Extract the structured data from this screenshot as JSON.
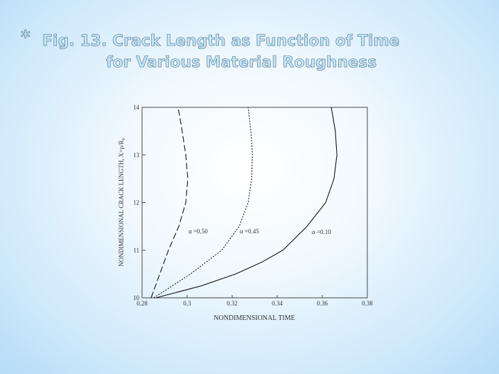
{
  "bullet": "*",
  "chart_data": {
    "type": "line",
    "title": [
      "Fig. 13. Crack Length as Function of Time",
      "for Various Material Roughness"
    ],
    "x_label": "NONDIMENSIONAL TIME",
    "y_label": "NONDIMENSIONAL CRACK LENGTH, X=ρ/R₀",
    "xlim": [
      0.28,
      0.38
    ],
    "xticks": [
      0.28,
      0.3,
      0.32,
      0.34,
      0.36,
      0.38
    ],
    "ylim": [
      10,
      14
    ],
    "yticks": [
      10,
      11,
      12,
      13,
      14
    ],
    "series": [
      {
        "name": "α =0.50",
        "color": "#111111",
        "dash": "long",
        "x": [
          0.284,
          0.2917,
          0.2963,
          0.2994,
          0.3003,
          0.2994,
          0.2978,
          0.296
        ],
        "values": [
          10,
          11,
          11.5,
          12,
          12.5,
          13,
          13.5,
          14
        ]
      },
      {
        "name": "α =0.45",
        "color": "#111111",
        "dash": "short",
        "x": [
          0.2852,
          0.3015,
          0.3154,
          0.3231,
          0.3271,
          0.3286,
          0.329,
          0.3283,
          0.3271
        ],
        "values": [
          10,
          10.5,
          11,
          11.5,
          12,
          12.5,
          13,
          13.5,
          14
        ]
      },
      {
        "name": "α =0.10",
        "color": "#111111",
        "dash": "solid",
        "x": [
          0.2862,
          0.3062,
          0.3215,
          0.3332,
          0.3425,
          0.3532,
          0.3615,
          0.3652,
          0.3665,
          0.3658,
          0.364
        ],
        "values": [
          10,
          10.25,
          10.5,
          10.75,
          11,
          11.5,
          12,
          12.5,
          13,
          13.5,
          14
        ]
      }
    ]
  }
}
